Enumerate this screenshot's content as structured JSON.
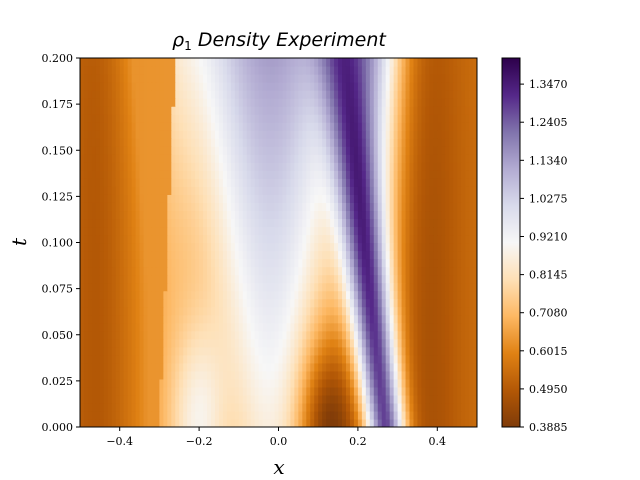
{
  "chart_data": {
    "type": "heatmap",
    "title_symbol": "ρ",
    "title_subscript": "1",
    "title_text": "Density Experiment",
    "xlabel": "x",
    "ylabel": "t",
    "xlim": [
      -0.5,
      0.5
    ],
    "ylim": [
      0.0,
      0.2
    ],
    "xticks": [
      -0.4,
      -0.2,
      0.0,
      0.2,
      0.4
    ],
    "xtick_labels": [
      "−0.4",
      "−0.2",
      "0.0",
      "0.2",
      "0.4"
    ],
    "yticks": [
      0.0,
      0.025,
      0.05,
      0.075,
      0.1,
      0.125,
      0.15,
      0.175,
      0.2
    ],
    "ytick_labels": [
      "0.000",
      "0.025",
      "0.050",
      "0.075",
      "0.100",
      "0.125",
      "0.150",
      "0.175",
      "0.200"
    ],
    "colorbar": {
      "min": 0.3885,
      "max": 1.42,
      "ticks": [
        0.3885,
        0.495,
        0.6015,
        0.708,
        0.8145,
        0.921,
        1.0275,
        1.134,
        1.2405,
        1.347
      ],
      "tick_labels": [
        "0.3885",
        "0.4950",
        "0.6015",
        "0.7080",
        "0.8145",
        "0.9210",
        "1.0275",
        "1.1340",
        "1.2405",
        "1.3470"
      ],
      "colormap": "PuOr",
      "colormap_stops": [
        "#7f3b08",
        "#b35806",
        "#e08214",
        "#fdb863",
        "#fee0b6",
        "#f7f7f7",
        "#d8daeb",
        "#b2abd2",
        "#8073ac",
        "#542788",
        "#2d004b"
      ]
    },
    "grid": false
  }
}
